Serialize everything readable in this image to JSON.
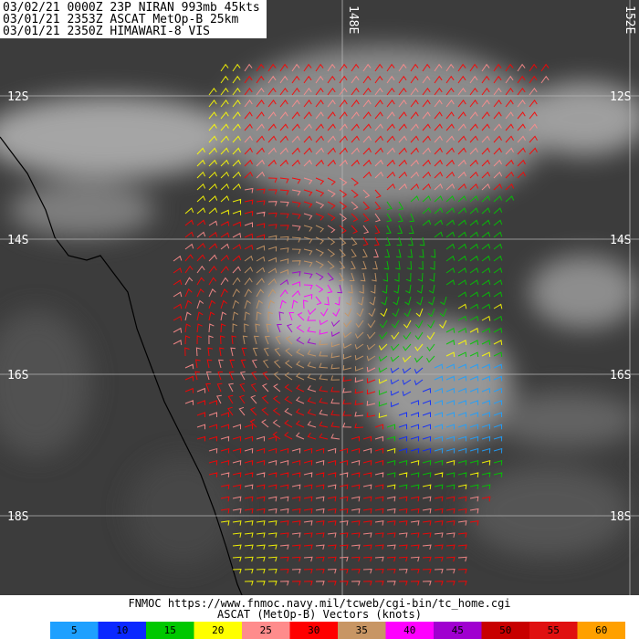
{
  "header": {
    "lines": [
      "03/02/21 0000Z 23P NIRAN 993mb 45kts",
      "03/01/21 2353Z ASCAT MetOp-B 25km",
      "03/01/21 2350Z HIMAWARI-8 VIS"
    ]
  },
  "grid": {
    "lat_labels": [
      "12S",
      "14S",
      "16S",
      "18S"
    ],
    "lon_labels": [
      "148E",
      "152E"
    ]
  },
  "footer": {
    "lines": [
      "FNMOC https://www.fnmoc.navy.mil/tcweb/cgi-bin/tc_home.cgi",
      "ASCAT (MetOp-B) Vectors (knots)"
    ]
  },
  "legend": {
    "items": [
      {
        "label": "5",
        "color": "#1ea0ff"
      },
      {
        "label": "10",
        "color": "#0a28ff"
      },
      {
        "label": "15",
        "color": "#00c800"
      },
      {
        "label": "20",
        "color": "#ffff00"
      },
      {
        "label": "25",
        "color": "#ff8c8c"
      },
      {
        "label": "30",
        "color": "#ff0000"
      },
      {
        "label": "35",
        "color": "#c89664"
      },
      {
        "label": "40",
        "color": "#ff00ff"
      },
      {
        "label": "45",
        "color": "#a000d0"
      },
      {
        "label": "50",
        "color": "#c80000"
      },
      {
        "label": "55",
        "color": "#e01010"
      },
      {
        "label": "60",
        "color": "#ffa000"
      }
    ]
  }
}
